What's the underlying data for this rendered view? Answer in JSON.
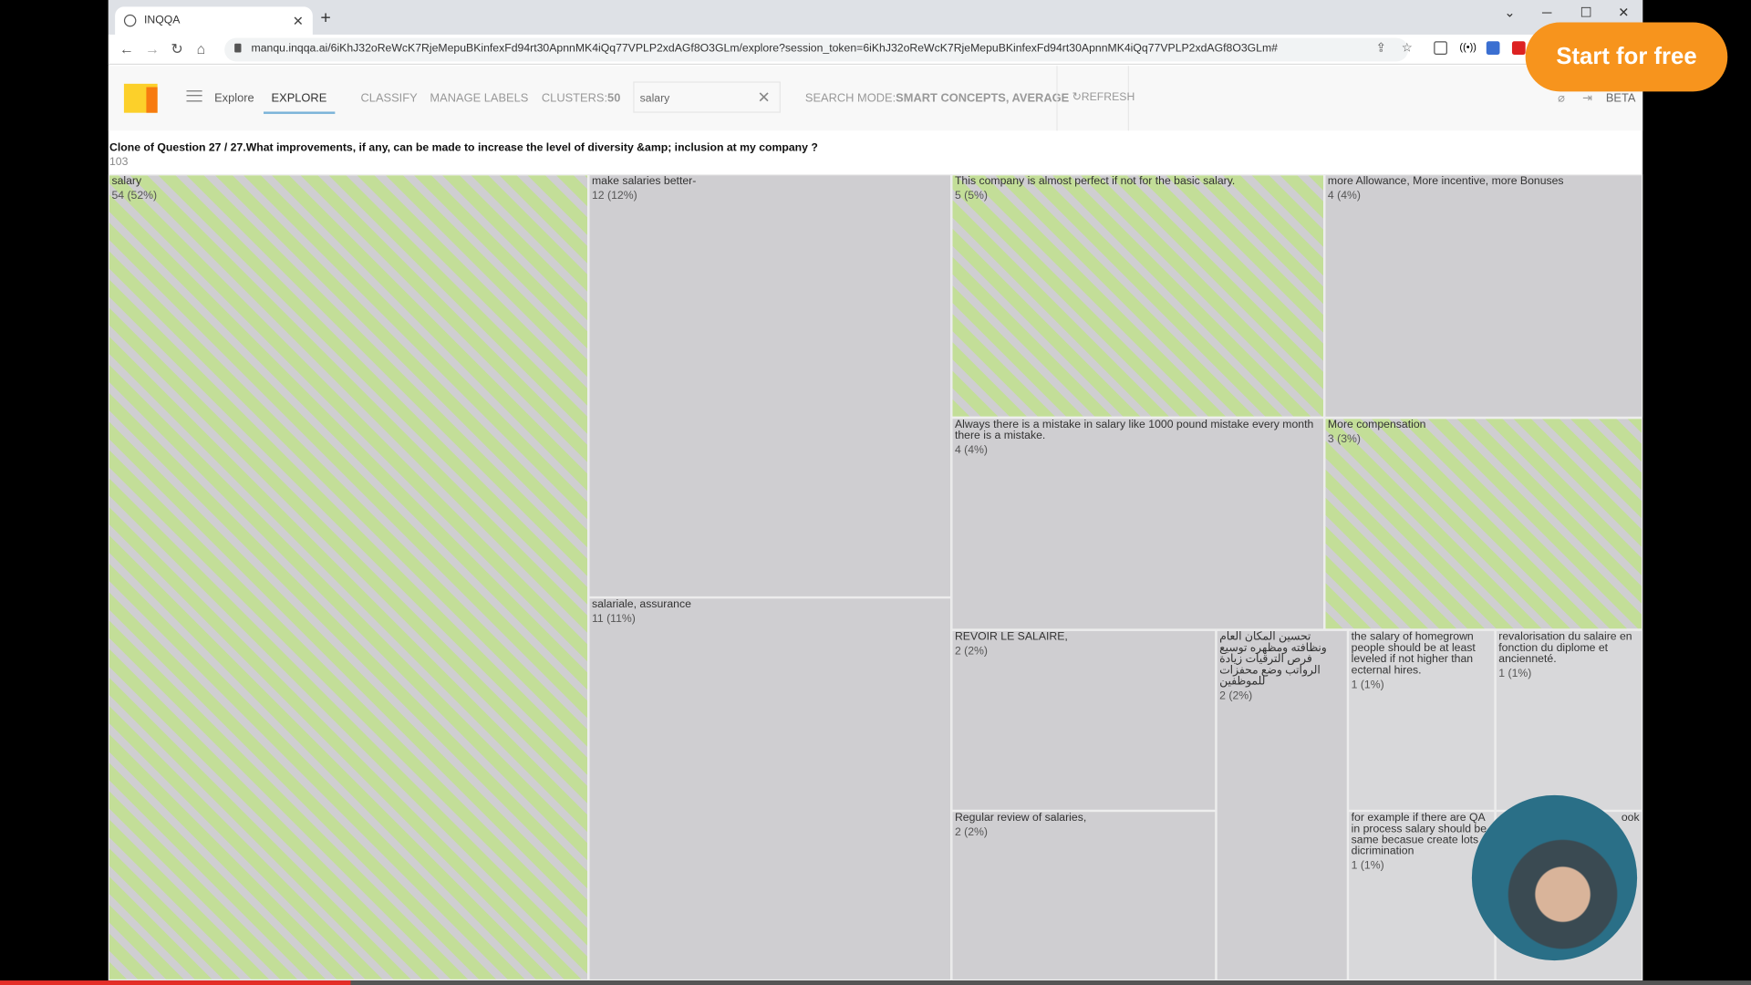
{
  "browser": {
    "tab_title": "INQQA",
    "url": "manqu.inqqa.ai/6iKhJ32oReWcK7RjeMepuBKinfexFd94rt30ApnnMK4iQq77VPLP2xdAGf8O3GLm/explore?session_token=6iKhJ32oReWcK7RjeMepuBKinfexFd94rt30ApnnMK4iQq77VPLP2xdAGf8O3GLm#"
  },
  "header": {
    "menu_label": "Explore",
    "tabs": [
      "EXPLORE",
      "CLASSIFY",
      "MANAGE LABELS"
    ],
    "clusters_label": "CLUSTERS:",
    "clusters_value": "50",
    "search_value": "salary",
    "search_mode_label": "SEARCH MODE:",
    "search_mode_value": "SMART CONCEPTS, AVERAGE",
    "refresh_label": "REFRESH",
    "beta_label": "BETA"
  },
  "question": {
    "title": "Clone of Question 27 / 27.What improvements, if any, can be made to increase the level of diversity &amp; inclusion at my company ?",
    "count": "103"
  },
  "highlight_color": "#c3de98",
  "clusters": [
    {
      "label": "salary",
      "count": "54 (52%)",
      "highlighted": true
    },
    {
      "label": "make salaries better-",
      "count": "12 (12%)",
      "highlighted": false
    },
    {
      "label": "salariale, assurance",
      "count": "11 (11%)",
      "highlighted": false
    },
    {
      "label": "This company is almost perfect if not for the basic salary.",
      "count": "5 (5%)",
      "highlighted": true
    },
    {
      "label": "more Allowance, More incentive, more Bonuses",
      "count": "4 (4%)",
      "highlighted": false
    },
    {
      "label": "Always there is a mistake in salary like 1000 pound mistake every month there is a mistake.",
      "count": "4 (4%)",
      "highlighted": false
    },
    {
      "label": "More compensation",
      "count": "3 (3%)",
      "highlighted": true
    },
    {
      "label": "REVOIR LE SALAIRE,",
      "count": "2 (2%)",
      "highlighted": false
    },
    {
      "label": "Regular review of salaries,",
      "count": "2 (2%)",
      "highlighted": false
    },
    {
      "label": "تحسين المكان العام ونظافته ومظهره توسيع فرص الترقيات زيادة الرواتب وضع محفزات للموظفين",
      "count": "2 (2%)",
      "highlighted": false
    },
    {
      "label": "the salary of homegrown people should be at least leveled if not higher than ecternal hires.",
      "count": "1 (1%)",
      "highlighted": false
    },
    {
      "label": "revalorisation du salaire en fonction du diplome et ancienneté.",
      "count": "1 (1%)",
      "highlighted": false
    },
    {
      "label": "for example if there are QA in process salary should be same becasue create lots of dicrimination",
      "count": "1 (1%)",
      "highlighted": false
    },
    {
      "label": "ook",
      "count": "",
      "highlighted": false
    }
  ],
  "overlay": {
    "cta_label": "Start for free",
    "video_progress_percent": 20
  }
}
